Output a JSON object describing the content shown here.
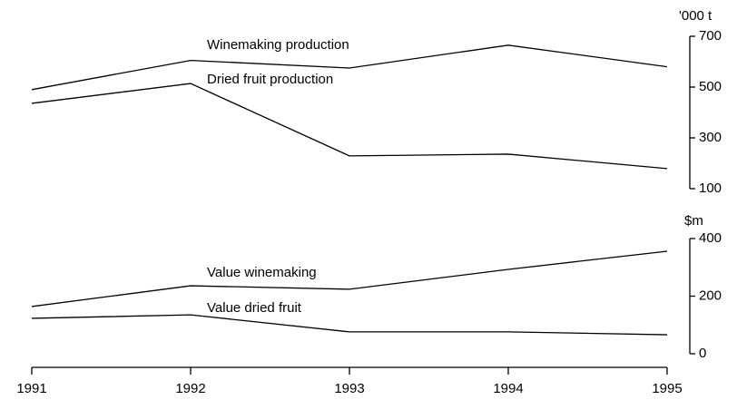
{
  "chart_data": [
    {
      "type": "line",
      "y_label": "'000 t",
      "x": [
        1991,
        1992,
        1993,
        1994,
        1995
      ],
      "xlim": [
        1991,
        1995
      ],
      "ylim": [
        100,
        700
      ],
      "yticks": [
        100,
        300,
        500,
        700
      ],
      "series": [
        {
          "name": "Winemaking production",
          "color": "#000000",
          "values": [
            490,
            605,
            575,
            665,
            580
          ]
        },
        {
          "name": "Dried fruit production",
          "color": "#000000",
          "values": [
            436,
            514,
            229,
            236,
            179
          ]
        }
      ]
    },
    {
      "type": "line",
      "y_label": "$m",
      "x": [
        1991,
        1992,
        1993,
        1994,
        1995
      ],
      "xlim": [
        1991,
        1995
      ],
      "xticks": [
        1991,
        1992,
        1993,
        1994,
        1995
      ],
      "ylim": [
        0,
        400
      ],
      "yticks": [
        0,
        200,
        400
      ],
      "series": [
        {
          "name": "Value winemaking",
          "color": "#000000",
          "values": [
            164,
            236,
            224,
            293,
            356
          ]
        },
        {
          "name": "Value dried fruit",
          "color": "#000000",
          "values": [
            123,
            135,
            76,
            76,
            66
          ]
        }
      ]
    }
  ]
}
